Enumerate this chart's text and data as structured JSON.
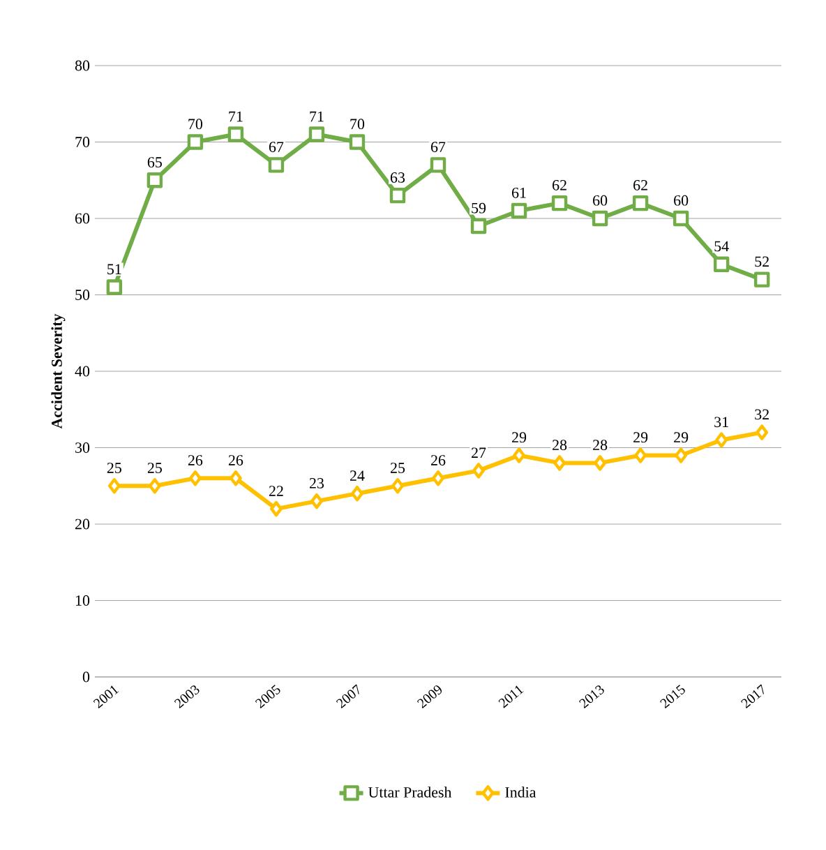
{
  "chart_data": {
    "type": "line",
    "ylabel": "Accident Severity",
    "categories": [
      "2001",
      null,
      "2003",
      null,
      "2005",
      null,
      "2007",
      null,
      "2009",
      null,
      "2011",
      null,
      "2013",
      null,
      "2015",
      null,
      "2017"
    ],
    "series": [
      {
        "name": "Uttar Pradesh",
        "color": "#70ad47",
        "marker": "square",
        "values": [
          51,
          65,
          70,
          71,
          67,
          71,
          70,
          63,
          67,
          59,
          61,
          62,
          60,
          62,
          60,
          54,
          52
        ]
      },
      {
        "name": "India",
        "color": "#ffc000",
        "marker": "diamond",
        "values": [
          25,
          25,
          26,
          26,
          22,
          23,
          24,
          25,
          26,
          27,
          29,
          28,
          28,
          29,
          29,
          31,
          32
        ]
      }
    ],
    "ylim": [
      0,
      80
    ],
    "yticks": [
      0,
      10,
      20,
      30,
      40,
      50,
      60,
      70,
      80
    ],
    "grid": "y",
    "legend": "bottom",
    "data_labels": true
  }
}
